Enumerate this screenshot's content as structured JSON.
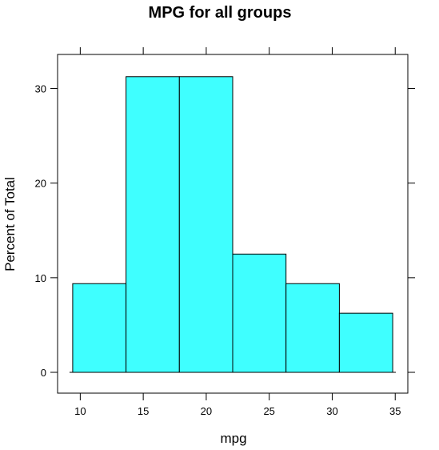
{
  "chart_data": {
    "type": "bar",
    "title": "MPG for all groups",
    "xlabel": "mpg",
    "ylabel": "Percent of Total",
    "bin_edges": [
      9.4,
      13.633,
      17.867,
      22.1,
      26.333,
      30.567,
      34.8
    ],
    "values": [
      9.375,
      31.25,
      31.25,
      12.5,
      9.375,
      6.25
    ],
    "xlim": [
      8.2,
      36.0
    ],
    "ylim": [
      -2.2,
      33.6
    ],
    "xticks": [
      10,
      15,
      20,
      25,
      30,
      35
    ],
    "yticks": [
      0,
      10,
      20,
      30
    ],
    "colors": {
      "fill": "#3fffff",
      "stroke": "#000000",
      "background": "#ffffff"
    }
  }
}
